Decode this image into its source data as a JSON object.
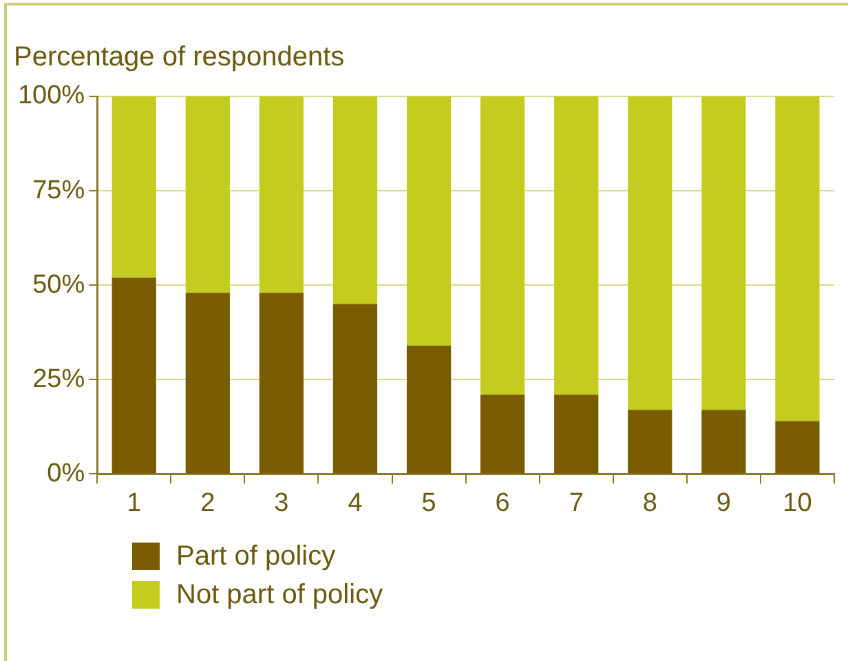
{
  "chart_data": {
    "type": "bar",
    "title": "Percentage of respondents",
    "stacked": true,
    "categories": [
      "1",
      "2",
      "3",
      "4",
      "5",
      "6",
      "7",
      "8",
      "9",
      "10"
    ],
    "series": [
      {
        "name": "Part of policy",
        "color": "#7a5c00",
        "values": [
          52,
          48,
          48,
          45,
          34,
          21,
          21,
          17,
          17,
          14
        ]
      },
      {
        "name": "Not part of policy",
        "color": "#c3cc1f",
        "values": [
          48,
          52,
          52,
          55,
          66,
          79,
          79,
          83,
          83,
          86
        ]
      }
    ],
    "ylim": [
      0,
      100
    ],
    "yticks": [
      {
        "value": 0,
        "label": "0%"
      },
      {
        "value": 25,
        "label": "25%"
      },
      {
        "value": 50,
        "label": "50%"
      },
      {
        "value": 75,
        "label": "75%"
      },
      {
        "value": 100,
        "label": "100%"
      }
    ],
    "grid": "y",
    "legend": "bottom left"
  }
}
